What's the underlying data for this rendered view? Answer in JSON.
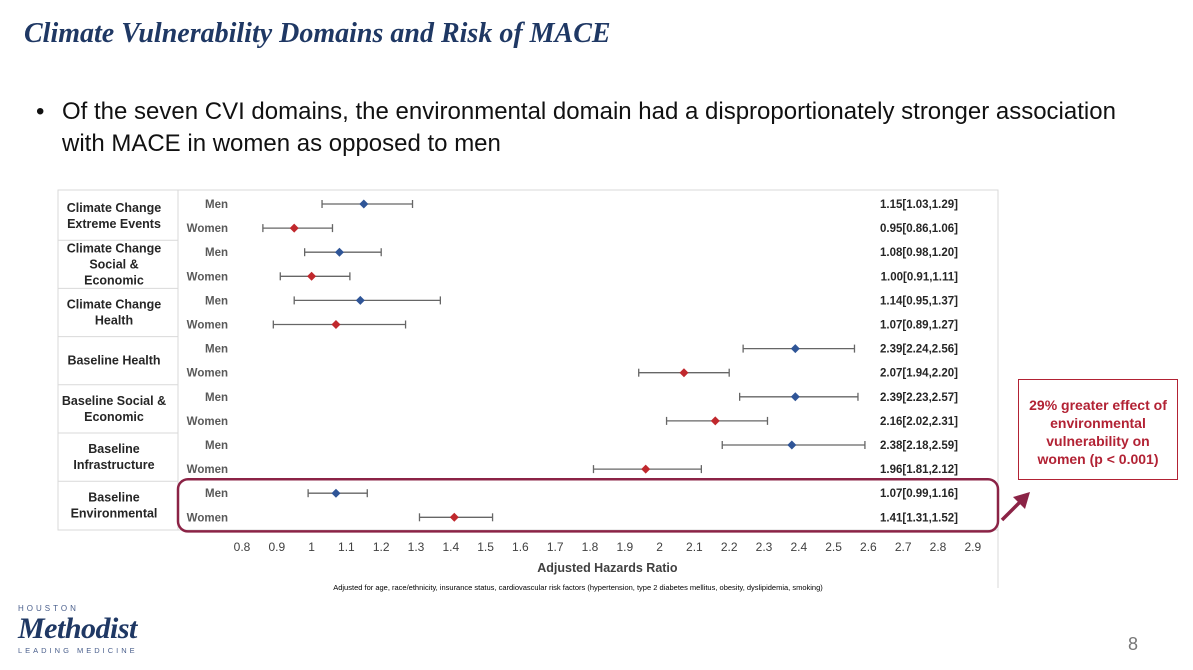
{
  "slide": {
    "title": "Climate Vulnerability Domains and Risk of MACE",
    "bullet_marker": "•",
    "bullet": "Of the seven CVI domains, the environmental domain had a disproportionately stronger association with MACE in women as opposed to men",
    "callout": "29% greater effect of environmental vulnerability on women (p < 0.001)",
    "footnote": "Adjusted for age, race/ethnicity, insurance status, cardiovascular risk factors (hypertension, type 2 diabetes mellitus, obesity, dyslipidemia, smoking)",
    "page_number": "8",
    "logo": {
      "top": "HOUSTON",
      "name": "Methodist",
      "tagline": "LEADING MEDICINE"
    }
  },
  "colors": {
    "title": "#1f3864",
    "men": "#2f5597",
    "women": "#c0282d",
    "highlight": "#8b2346",
    "callout": "#b22234",
    "whisker": "#666666",
    "grid": "#d9d9d9"
  },
  "chart_data": {
    "type": "forest",
    "xlabel": "Adjusted Hazards Ratio",
    "xlim": [
      0.8,
      2.9
    ],
    "xticks": [
      0.8,
      0.9,
      1,
      1.1,
      1.2,
      1.3,
      1.4,
      1.5,
      1.6,
      1.7,
      1.8,
      1.9,
      2,
      2.1,
      2.2,
      2.3,
      2.4,
      2.5,
      2.6,
      2.7,
      2.8,
      2.9
    ],
    "highlighted_domain": "Baseline Environmental",
    "domains": [
      {
        "name": "Climate Change Extreme Events",
        "lines": [
          "Climate Change",
          "Extreme Events"
        ],
        "rows": [
          {
            "group": "Men",
            "hr": 1.15,
            "lo": 1.03,
            "hi": 1.29,
            "label": "1.15[1.03,1.29]"
          },
          {
            "group": "Women",
            "hr": 0.95,
            "lo": 0.86,
            "hi": 1.06,
            "label": "0.95[0.86,1.06]"
          }
        ]
      },
      {
        "name": "Climate Change Social & Economic",
        "lines": [
          "Climate Change",
          "Social &",
          "Economic"
        ],
        "rows": [
          {
            "group": "Men",
            "hr": 1.08,
            "lo": 0.98,
            "hi": 1.2,
            "label": "1.08[0.98,1.20]"
          },
          {
            "group": "Women",
            "hr": 1.0,
            "lo": 0.91,
            "hi": 1.11,
            "label": "1.00[0.91,1.11]"
          }
        ]
      },
      {
        "name": "Climate Change Health",
        "lines": [
          "Climate Change",
          "Health"
        ],
        "rows": [
          {
            "group": "Men",
            "hr": 1.14,
            "lo": 0.95,
            "hi": 1.37,
            "label": "1.14[0.95,1.37]"
          },
          {
            "group": "Women",
            "hr": 1.07,
            "lo": 0.89,
            "hi": 1.27,
            "label": "1.07[0.89,1.27]"
          }
        ]
      },
      {
        "name": "Baseline Health",
        "lines": [
          "Baseline Health"
        ],
        "rows": [
          {
            "group": "Men",
            "hr": 2.39,
            "lo": 2.24,
            "hi": 2.56,
            "label": "2.39[2.24,2.56]"
          },
          {
            "group": "Women",
            "hr": 2.07,
            "lo": 1.94,
            "hi": 2.2,
            "label": "2.07[1.94,2.20]"
          }
        ]
      },
      {
        "name": "Baseline Social & Economic",
        "lines": [
          "Baseline Social &",
          "Economic"
        ],
        "rows": [
          {
            "group": "Men",
            "hr": 2.39,
            "lo": 2.23,
            "hi": 2.57,
            "label": "2.39[2.23,2.57]"
          },
          {
            "group": "Women",
            "hr": 2.16,
            "lo": 2.02,
            "hi": 2.31,
            "label": "2.16[2.02,2.31]"
          }
        ]
      },
      {
        "name": "Baseline Infrastructure",
        "lines": [
          "Baseline",
          "Infrastructure"
        ],
        "rows": [
          {
            "group": "Men",
            "hr": 2.38,
            "lo": 2.18,
            "hi": 2.59,
            "label": "2.38[2.18,2.59]"
          },
          {
            "group": "Women",
            "hr": 1.96,
            "lo": 1.81,
            "hi": 2.12,
            "label": "1.96[1.81,2.12]"
          }
        ]
      },
      {
        "name": "Baseline Environmental",
        "lines": [
          "Baseline",
          "Environmental"
        ],
        "rows": [
          {
            "group": "Men",
            "hr": 1.07,
            "lo": 0.99,
            "hi": 1.16,
            "label": "1.07[0.99,1.16]"
          },
          {
            "group": "Women",
            "hr": 1.41,
            "lo": 1.31,
            "hi": 1.52,
            "label": "1.41[1.31,1.52]"
          }
        ]
      }
    ]
  }
}
